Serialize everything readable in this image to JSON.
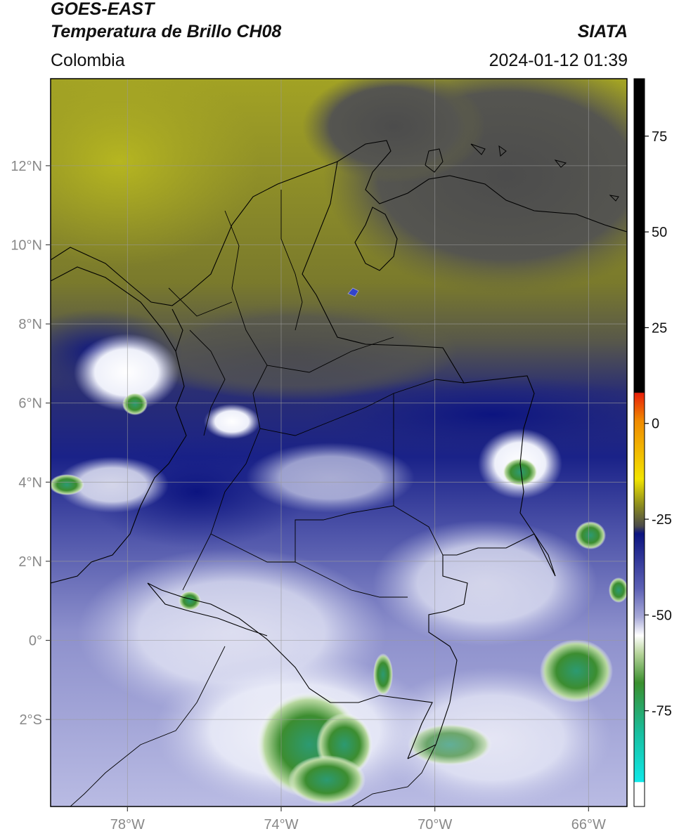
{
  "header": {
    "satellite": "GOES-EAST",
    "product": "Temperatura de Brillo CH08",
    "region": "Colombia",
    "organization": "SIATA",
    "timestamp": "2024-01-12 01:39"
  },
  "map": {
    "lon_labels": [
      "78°W",
      "74°W",
      "70°W",
      "66°W"
    ],
    "lat_labels": [
      "12°N",
      "10°N",
      "8°N",
      "6°N",
      "4°N",
      "2°N",
      "0°",
      "2°S"
    ],
    "lon_range": [
      -80,
      -65
    ],
    "lat_range": [
      -4.2,
      14.2
    ],
    "gridlines": true
  },
  "colorbar": {
    "tick_labels": [
      "75",
      "50",
      "25",
      "0",
      "-25",
      "-50",
      "-75"
    ],
    "range": [
      -100,
      90
    ],
    "colors": {
      "black": "#000000",
      "red": "#e8200a",
      "orange": "#f08a00",
      "yellow": "#f2e400",
      "olive": "#8e8e1e",
      "gray": "#4a4a4a",
      "navy": "#101a8a",
      "lavender": "#a8aad8",
      "white": "#ffffff",
      "green": "#3a8f2e",
      "teal": "#18bfa0",
      "cyan": "#10e8e8"
    }
  }
}
